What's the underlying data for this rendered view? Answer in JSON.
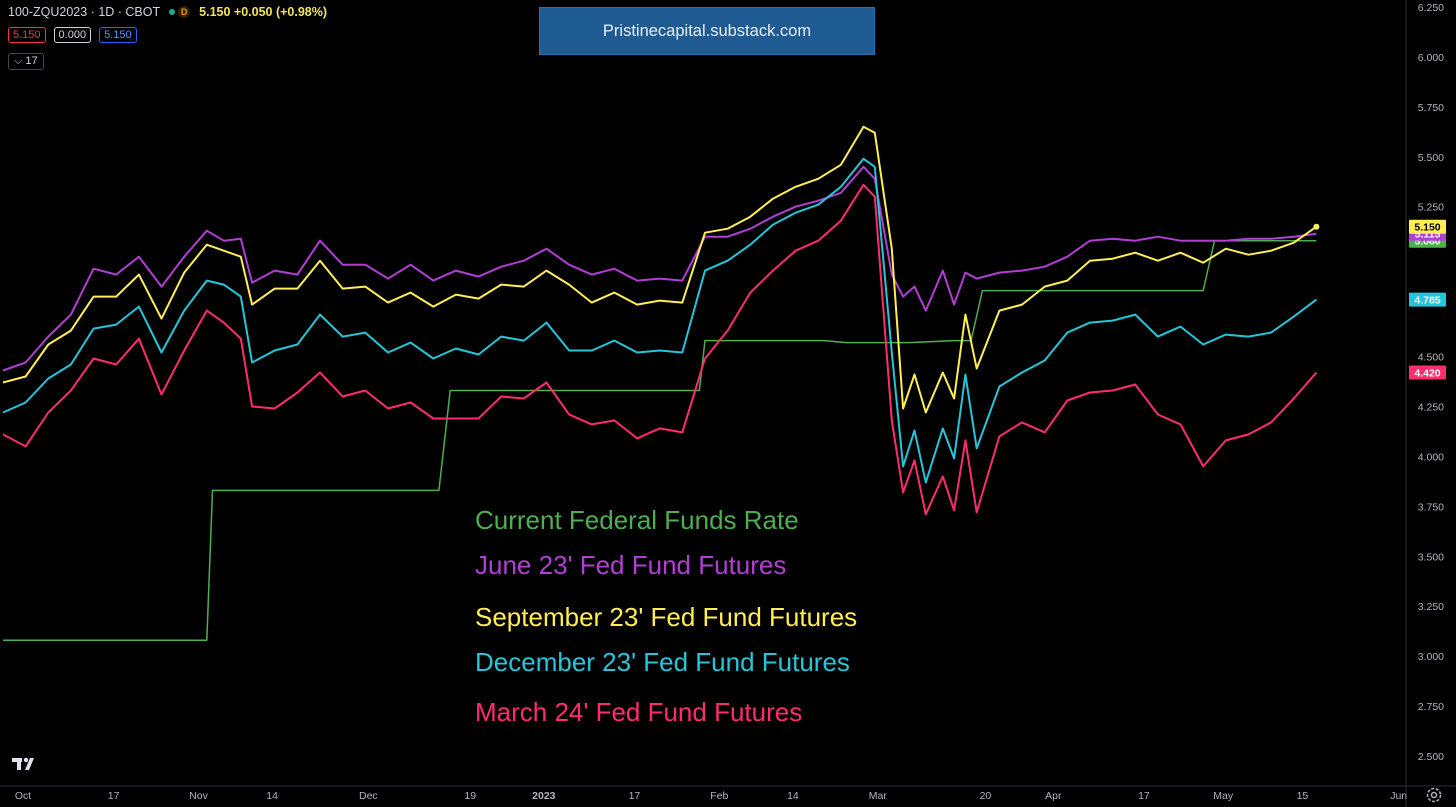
{
  "header": {
    "symbol": "100-ZQU2023 · 1D · CBOT",
    "delayed_badge": "D",
    "quote": "5.150 +0.050 (+0.98%)",
    "bid": "5.150",
    "spread": "0.000",
    "ask": "5.150",
    "collapse_label": "17"
  },
  "banner": "Pristinecapital.substack.com",
  "legend": [
    {
      "text": "Current Federal Funds Rate",
      "color": "#4caf50"
    },
    {
      "text": "June 23' Fed Fund Futures",
      "color": "#b23ed6"
    },
    {
      "text": "September 23' Fed Fund Futures",
      "color": "#ffee55"
    },
    {
      "text": "December 23' Fed Fund Futures",
      "color": "#26c6da"
    },
    {
      "text": "March 24' Fed Fund Futures",
      "color": "#ff2d6f"
    }
  ],
  "chart_data": {
    "type": "line",
    "ylim": [
      2.4,
      6.3
    ],
    "x_day_range": [
      0,
      245
    ],
    "y_ticks": [
      "6.250",
      "6.000",
      "5.750",
      "5.500",
      "5.250",
      "4.500",
      "4.250",
      "4.000",
      "3.750",
      "3.500",
      "3.250",
      "3.000",
      "2.750",
      "2.500"
    ],
    "x_ticks": [
      {
        "label": "Oct",
        "day": 0
      },
      {
        "label": "17",
        "day": 16
      },
      {
        "label": "Nov",
        "day": 31
      },
      {
        "label": "14",
        "day": 44
      },
      {
        "label": "Dec",
        "day": 61
      },
      {
        "label": "19",
        "day": 79
      },
      {
        "label": "2023",
        "day": 92
      },
      {
        "label": "17",
        "day": 108
      },
      {
        "label": "Feb",
        "day": 123
      },
      {
        "label": "14",
        "day": 136
      },
      {
        "label": "Mar",
        "day": 151
      },
      {
        "label": "20",
        "day": 170
      },
      {
        "label": "Apr",
        "day": 182
      },
      {
        "label": "17",
        "day": 198
      },
      {
        "label": "May",
        "day": 212
      },
      {
        "label": "15",
        "day": 226
      },
      {
        "label": "Jun",
        "day": 243
      }
    ],
    "series": [
      {
        "color": "#4caf50",
        "last": "5.080",
        "line_width": 1.5,
        "points": [
          [
            0,
            3.08
          ],
          [
            36,
            3.08
          ],
          [
            37,
            3.83
          ],
          [
            77,
            3.83
          ],
          [
            79,
            4.33
          ],
          [
            123,
            4.33
          ],
          [
            124,
            4.58
          ],
          [
            145,
            4.58
          ],
          [
            149,
            4.57
          ],
          [
            160,
            4.57
          ],
          [
            168,
            4.58
          ],
          [
            171,
            4.58
          ],
          [
            173,
            4.83
          ],
          [
            212,
            4.83
          ],
          [
            214,
            5.08
          ],
          [
            230,
            5.08
          ],
          [
            232,
            5.08
          ]
        ]
      },
      {
        "color": "#b23ed6",
        "last": "5.115",
        "line_width": 2,
        "points": [
          [
            0,
            4.43
          ],
          [
            4,
            4.47
          ],
          [
            8,
            4.6
          ],
          [
            12,
            4.71
          ],
          [
            16,
            4.94
          ],
          [
            20,
            4.91
          ],
          [
            24,
            5.0
          ],
          [
            28,
            4.85
          ],
          [
            32,
            5.0
          ],
          [
            36,
            5.13
          ],
          [
            39,
            5.08
          ],
          [
            42,
            5.09
          ],
          [
            44,
            4.87
          ],
          [
            48,
            4.93
          ],
          [
            52,
            4.91
          ],
          [
            56,
            5.08
          ],
          [
            60,
            4.96
          ],
          [
            64,
            4.96
          ],
          [
            68,
            4.89
          ],
          [
            72,
            4.96
          ],
          [
            76,
            4.88
          ],
          [
            80,
            4.93
          ],
          [
            84,
            4.9
          ],
          [
            88,
            4.95
          ],
          [
            92,
            4.98
          ],
          [
            96,
            5.04
          ],
          [
            100,
            4.96
          ],
          [
            104,
            4.91
          ],
          [
            108,
            4.94
          ],
          [
            112,
            4.88
          ],
          [
            116,
            4.89
          ],
          [
            120,
            4.88
          ],
          [
            124,
            5.1
          ],
          [
            128,
            5.1
          ],
          [
            132,
            5.14
          ],
          [
            136,
            5.2
          ],
          [
            140,
            5.25
          ],
          [
            144,
            5.28
          ],
          [
            148,
            5.32
          ],
          [
            152,
            5.45
          ],
          [
            154,
            5.39
          ],
          [
            157,
            4.91
          ],
          [
            159,
            4.8
          ],
          [
            161,
            4.85
          ],
          [
            163,
            4.73
          ],
          [
            166,
            4.93
          ],
          [
            168,
            4.76
          ],
          [
            170,
            4.92
          ],
          [
            172,
            4.89
          ],
          [
            176,
            4.92
          ],
          [
            180,
            4.93
          ],
          [
            184,
            4.95
          ],
          [
            188,
            5.0
          ],
          [
            192,
            5.08
          ],
          [
            196,
            5.09
          ],
          [
            200,
            5.08
          ],
          [
            204,
            5.1
          ],
          [
            208,
            5.08
          ],
          [
            212,
            5.08
          ],
          [
            216,
            5.08
          ],
          [
            220,
            5.09
          ],
          [
            224,
            5.09
          ],
          [
            228,
            5.1
          ],
          [
            232,
            5.115
          ]
        ]
      },
      {
        "color": "#ffee55",
        "last": "5.150",
        "line_width": 2,
        "points": [
          [
            0,
            4.37
          ],
          [
            4,
            4.4
          ],
          [
            8,
            4.56
          ],
          [
            12,
            4.63
          ],
          [
            16,
            4.8
          ],
          [
            20,
            4.8
          ],
          [
            24,
            4.91
          ],
          [
            28,
            4.69
          ],
          [
            32,
            4.92
          ],
          [
            36,
            5.06
          ],
          [
            39,
            5.03
          ],
          [
            42,
            5.0
          ],
          [
            44,
            4.76
          ],
          [
            48,
            4.84
          ],
          [
            52,
            4.84
          ],
          [
            56,
            4.98
          ],
          [
            60,
            4.84
          ],
          [
            64,
            4.85
          ],
          [
            68,
            4.77
          ],
          [
            72,
            4.82
          ],
          [
            76,
            4.75
          ],
          [
            80,
            4.81
          ],
          [
            84,
            4.79
          ],
          [
            88,
            4.86
          ],
          [
            92,
            4.85
          ],
          [
            96,
            4.93
          ],
          [
            100,
            4.86
          ],
          [
            104,
            4.77
          ],
          [
            108,
            4.82
          ],
          [
            112,
            4.76
          ],
          [
            116,
            4.78
          ],
          [
            120,
            4.77
          ],
          [
            124,
            5.12
          ],
          [
            128,
            5.14
          ],
          [
            132,
            5.2
          ],
          [
            136,
            5.29
          ],
          [
            140,
            5.35
          ],
          [
            144,
            5.39
          ],
          [
            148,
            5.46
          ],
          [
            152,
            5.65
          ],
          [
            154,
            5.62
          ],
          [
            157,
            5.04
          ],
          [
            159,
            4.24
          ],
          [
            161,
            4.41
          ],
          [
            163,
            4.22
          ],
          [
            166,
            4.42
          ],
          [
            168,
            4.29
          ],
          [
            170,
            4.71
          ],
          [
            172,
            4.44
          ],
          [
            176,
            4.73
          ],
          [
            180,
            4.76
          ],
          [
            184,
            4.85
          ],
          [
            188,
            4.88
          ],
          [
            192,
            4.98
          ],
          [
            196,
            4.99
          ],
          [
            200,
            5.02
          ],
          [
            204,
            4.98
          ],
          [
            208,
            5.02
          ],
          [
            212,
            4.97
          ],
          [
            216,
            5.04
          ],
          [
            220,
            5.01
          ],
          [
            224,
            5.03
          ],
          [
            228,
            5.07
          ],
          [
            232,
            5.15
          ]
        ]
      },
      {
        "color": "#26c6da",
        "last": "4.785",
        "line_width": 2,
        "points": [
          [
            0,
            4.22
          ],
          [
            4,
            4.27
          ],
          [
            8,
            4.39
          ],
          [
            12,
            4.46
          ],
          [
            16,
            4.64
          ],
          [
            20,
            4.66
          ],
          [
            24,
            4.75
          ],
          [
            28,
            4.52
          ],
          [
            32,
            4.73
          ],
          [
            36,
            4.88
          ],
          [
            39,
            4.86
          ],
          [
            42,
            4.8
          ],
          [
            44,
            4.47
          ],
          [
            48,
            4.53
          ],
          [
            52,
            4.56
          ],
          [
            56,
            4.71
          ],
          [
            60,
            4.6
          ],
          [
            64,
            4.62
          ],
          [
            68,
            4.52
          ],
          [
            72,
            4.57
          ],
          [
            76,
            4.49
          ],
          [
            80,
            4.54
          ],
          [
            84,
            4.51
          ],
          [
            88,
            4.6
          ],
          [
            92,
            4.58
          ],
          [
            96,
            4.67
          ],
          [
            100,
            4.53
          ],
          [
            104,
            4.53
          ],
          [
            108,
            4.58
          ],
          [
            112,
            4.52
          ],
          [
            116,
            4.53
          ],
          [
            120,
            4.52
          ],
          [
            124,
            4.93
          ],
          [
            128,
            4.98
          ],
          [
            132,
            5.06
          ],
          [
            136,
            5.16
          ],
          [
            140,
            5.22
          ],
          [
            144,
            5.26
          ],
          [
            148,
            5.35
          ],
          [
            152,
            5.49
          ],
          [
            154,
            5.45
          ],
          [
            157,
            4.52
          ],
          [
            159,
            3.95
          ],
          [
            161,
            4.13
          ],
          [
            163,
            3.87
          ],
          [
            166,
            4.14
          ],
          [
            168,
            3.99
          ],
          [
            170,
            4.41
          ],
          [
            172,
            4.04
          ],
          [
            176,
            4.35
          ],
          [
            180,
            4.42
          ],
          [
            184,
            4.48
          ],
          [
            188,
            4.62
          ],
          [
            192,
            4.67
          ],
          [
            196,
            4.68
          ],
          [
            200,
            4.71
          ],
          [
            204,
            4.6
          ],
          [
            208,
            4.65
          ],
          [
            212,
            4.56
          ],
          [
            216,
            4.61
          ],
          [
            220,
            4.6
          ],
          [
            224,
            4.62
          ],
          [
            228,
            4.7
          ],
          [
            232,
            4.785
          ]
        ]
      },
      {
        "color": "#ff2d6f",
        "last": "4.420",
        "line_width": 2,
        "points": [
          [
            0,
            4.11
          ],
          [
            4,
            4.05
          ],
          [
            8,
            4.22
          ],
          [
            12,
            4.33
          ],
          [
            16,
            4.49
          ],
          [
            20,
            4.46
          ],
          [
            24,
            4.59
          ],
          [
            28,
            4.31
          ],
          [
            32,
            4.53
          ],
          [
            36,
            4.73
          ],
          [
            39,
            4.67
          ],
          [
            42,
            4.59
          ],
          [
            44,
            4.25
          ],
          [
            48,
            4.24
          ],
          [
            52,
            4.32
          ],
          [
            56,
            4.42
          ],
          [
            60,
            4.3
          ],
          [
            64,
            4.33
          ],
          [
            68,
            4.24
          ],
          [
            72,
            4.27
          ],
          [
            76,
            4.19
          ],
          [
            80,
            4.19
          ],
          [
            84,
            4.19
          ],
          [
            88,
            4.3
          ],
          [
            92,
            4.29
          ],
          [
            96,
            4.37
          ],
          [
            100,
            4.21
          ],
          [
            104,
            4.16
          ],
          [
            108,
            4.18
          ],
          [
            112,
            4.09
          ],
          [
            116,
            4.14
          ],
          [
            120,
            4.12
          ],
          [
            124,
            4.49
          ],
          [
            128,
            4.63
          ],
          [
            132,
            4.82
          ],
          [
            136,
            4.93
          ],
          [
            140,
            5.03
          ],
          [
            144,
            5.08
          ],
          [
            148,
            5.18
          ],
          [
            152,
            5.36
          ],
          [
            154,
            5.3
          ],
          [
            157,
            4.18
          ],
          [
            159,
            3.82
          ],
          [
            161,
            3.98
          ],
          [
            163,
            3.71
          ],
          [
            166,
            3.9
          ],
          [
            168,
            3.73
          ],
          [
            170,
            4.08
          ],
          [
            172,
            3.72
          ],
          [
            176,
            4.1
          ],
          [
            180,
            4.17
          ],
          [
            184,
            4.12
          ],
          [
            188,
            4.28
          ],
          [
            192,
            4.32
          ],
          [
            196,
            4.33
          ],
          [
            200,
            4.36
          ],
          [
            204,
            4.21
          ],
          [
            208,
            4.16
          ],
          [
            212,
            3.95
          ],
          [
            216,
            4.08
          ],
          [
            220,
            4.11
          ],
          [
            224,
            4.17
          ],
          [
            228,
            4.29
          ],
          [
            232,
            4.42
          ]
        ]
      }
    ]
  }
}
